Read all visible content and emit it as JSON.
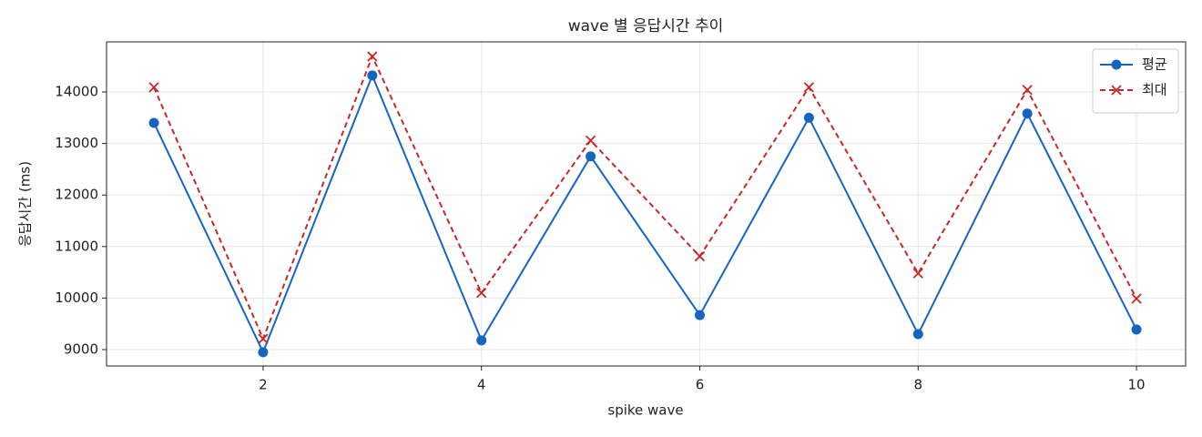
{
  "chart_data": {
    "type": "line",
    "title": "wave 별 응답시간 추이",
    "x_label": "spike wave",
    "y_label": "응답시간 (ms)",
    "x": [
      1,
      2,
      3,
      4,
      5,
      6,
      7,
      8,
      9,
      10
    ],
    "series": [
      {
        "name": "평균",
        "color": "#1565c0",
        "marker": "circle",
        "dashed": false,
        "values": [
          13400,
          8950,
          14320,
          9180,
          12750,
          9670,
          13500,
          9300,
          13580,
          9390
        ]
      },
      {
        "name": "최대",
        "color": "#c62828",
        "marker": "x",
        "dashed": true,
        "values": [
          14090,
          9210,
          14690,
          10100,
          13060,
          10810,
          14090,
          10480,
          14040,
          9990
        ]
      }
    ],
    "xlim": [
      0.566,
      10.45
    ],
    "xticks": [
      2,
      4,
      6,
      8,
      10
    ],
    "ylim": [
      8682,
      14972
    ],
    "yticks": [
      9000,
      10000,
      11000,
      12000,
      13000,
      14000
    ],
    "grid": true,
    "legend": "upper-right"
  }
}
